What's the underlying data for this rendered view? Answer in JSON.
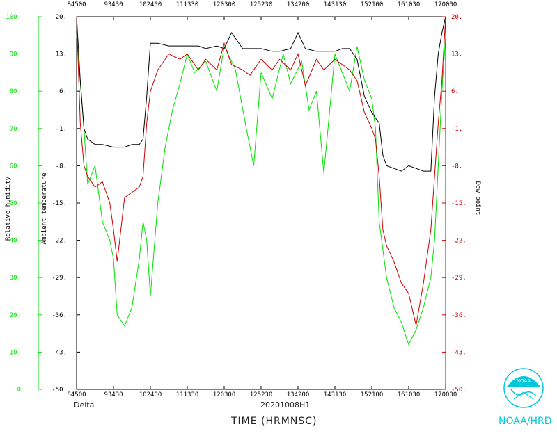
{
  "chart_data": {
    "type": "line",
    "x_ticks": [
      "84500",
      "93430",
      "102400",
      "111330",
      "120300",
      "125230",
      "134200",
      "143130",
      "152100",
      "161030",
      "170000"
    ],
    "y_left_outer": {
      "label": "Relative humidity",
      "range": [
        0,
        100
      ],
      "ticks": [
        "0",
        "10.",
        "20.",
        "30.",
        "40.",
        "50.",
        "60.",
        "70.",
        "80.",
        "90.",
        "100."
      ],
      "color": "#00e000"
    },
    "y_left_inner": {
      "label": "Ambient temperature",
      "range": [
        -50,
        20
      ],
      "ticks": [
        "-50.",
        "-43.",
        "-36.",
        "-29.",
        "-22.",
        "-15.",
        "-8.",
        "-1.",
        "6.",
        "13.",
        "20."
      ],
      "color": "#000000"
    },
    "y_right": {
      "label": "Dew point",
      "range": [
        -50,
        20
      ],
      "ticks": [
        "-50.",
        "-43.",
        "-36.",
        "-29.",
        "-22.",
        "-15.",
        "-8.",
        "-1.",
        "6.",
        "13.",
        "20."
      ],
      "color": "#cc0000"
    },
    "x_range": [
      0,
      1
    ],
    "series": [
      {
        "name": "Relative humidity",
        "color": "#00e000",
        "x": [
          0.0,
          0.02,
          0.03,
          0.05,
          0.07,
          0.09,
          0.1,
          0.11,
          0.13,
          0.15,
          0.17,
          0.18,
          0.19,
          0.2,
          0.22,
          0.24,
          0.26,
          0.28,
          0.3,
          0.32,
          0.35,
          0.38,
          0.4,
          0.43,
          0.46,
          0.48,
          0.5,
          0.53,
          0.56,
          0.58,
          0.61,
          0.63,
          0.65,
          0.67,
          0.7,
          0.72,
          0.74,
          0.76,
          0.78,
          0.8,
          0.81,
          0.82,
          0.84,
          0.86,
          0.88,
          0.9,
          0.91,
          0.92,
          0.94,
          0.96,
          0.97,
          0.99,
          1.0
        ],
        "y": [
          95,
          70,
          55,
          60,
          45,
          40,
          35,
          20,
          17,
          22,
          35,
          45,
          40,
          25,
          50,
          65,
          75,
          82,
          90,
          85,
          88,
          80,
          92,
          86,
          70,
          60,
          85,
          78,
          90,
          82,
          88,
          75,
          80,
          58,
          90,
          85,
          80,
          92,
          83,
          78,
          70,
          45,
          30,
          22,
          18,
          12,
          14,
          16,
          22,
          30,
          40,
          80,
          95
        ]
      },
      {
        "name": "Ambient temperature",
        "color": "#000000",
        "x": [
          0.0,
          0.01,
          0.02,
          0.03,
          0.05,
          0.07,
          0.1,
          0.13,
          0.15,
          0.17,
          0.18,
          0.19,
          0.2,
          0.22,
          0.25,
          0.28,
          0.3,
          0.33,
          0.35,
          0.38,
          0.4,
          0.42,
          0.45,
          0.47,
          0.5,
          0.53,
          0.55,
          0.58,
          0.6,
          0.62,
          0.65,
          0.67,
          0.7,
          0.72,
          0.74,
          0.76,
          0.78,
          0.8,
          0.81,
          0.82,
          0.83,
          0.84,
          0.86,
          0.88,
          0.9,
          0.92,
          0.94,
          0.96,
          0.97,
          0.98,
          0.99,
          1.0
        ],
        "y": [
          20,
          8,
          -1,
          -3,
          -4,
          -4,
          -4.5,
          -4.5,
          -4,
          -4,
          -3,
          5,
          15,
          15,
          14.5,
          14.5,
          14.5,
          14.5,
          14,
          14.5,
          14,
          17,
          14,
          14,
          14,
          13.5,
          13.5,
          14,
          17,
          14,
          13.5,
          13.5,
          13.5,
          14,
          14,
          12,
          5,
          2,
          1,
          0,
          -6,
          -8,
          -8.5,
          -9,
          -8,
          -8.5,
          -9,
          -9,
          5,
          13,
          17,
          20
        ]
      },
      {
        "name": "Dew point",
        "color": "#cc0000",
        "x": [
          0.0,
          0.01,
          0.02,
          0.03,
          0.05,
          0.07,
          0.09,
          0.1,
          0.11,
          0.13,
          0.15,
          0.17,
          0.18,
          0.19,
          0.2,
          0.22,
          0.25,
          0.28,
          0.3,
          0.33,
          0.35,
          0.38,
          0.4,
          0.42,
          0.45,
          0.47,
          0.5,
          0.53,
          0.55,
          0.58,
          0.6,
          0.62,
          0.65,
          0.67,
          0.7,
          0.72,
          0.74,
          0.76,
          0.78,
          0.8,
          0.81,
          0.82,
          0.83,
          0.84,
          0.86,
          0.88,
          0.9,
          0.92,
          0.94,
          0.96,
          0.97,
          0.98,
          0.99,
          1.0
        ],
        "y": [
          20,
          0,
          -8,
          -10,
          -12,
          -11,
          -15,
          -20,
          -26,
          -14,
          -13,
          -12,
          -10,
          0,
          6,
          10,
          13,
          12,
          13,
          10,
          12,
          10,
          15,
          11,
          10,
          9,
          12,
          10,
          12,
          10,
          13,
          7,
          12,
          10,
          12,
          11,
          10,
          8,
          2,
          -1,
          -3,
          -10,
          -20,
          -23,
          -26,
          -30,
          -32,
          -38,
          -30,
          -20,
          -10,
          0,
          8,
          20
        ]
      }
    ]
  },
  "footer": {
    "storm_name": "Delta",
    "flight_id": "20201008H1",
    "xlabel": "TIME (HRMNSC)",
    "org_label": "NOAA/HRD",
    "logo_text": "NOAA"
  },
  "colors": {
    "rh": "#00e000",
    "temp": "#000000",
    "dew": "#cc0000",
    "logo": "#00c8d8"
  }
}
